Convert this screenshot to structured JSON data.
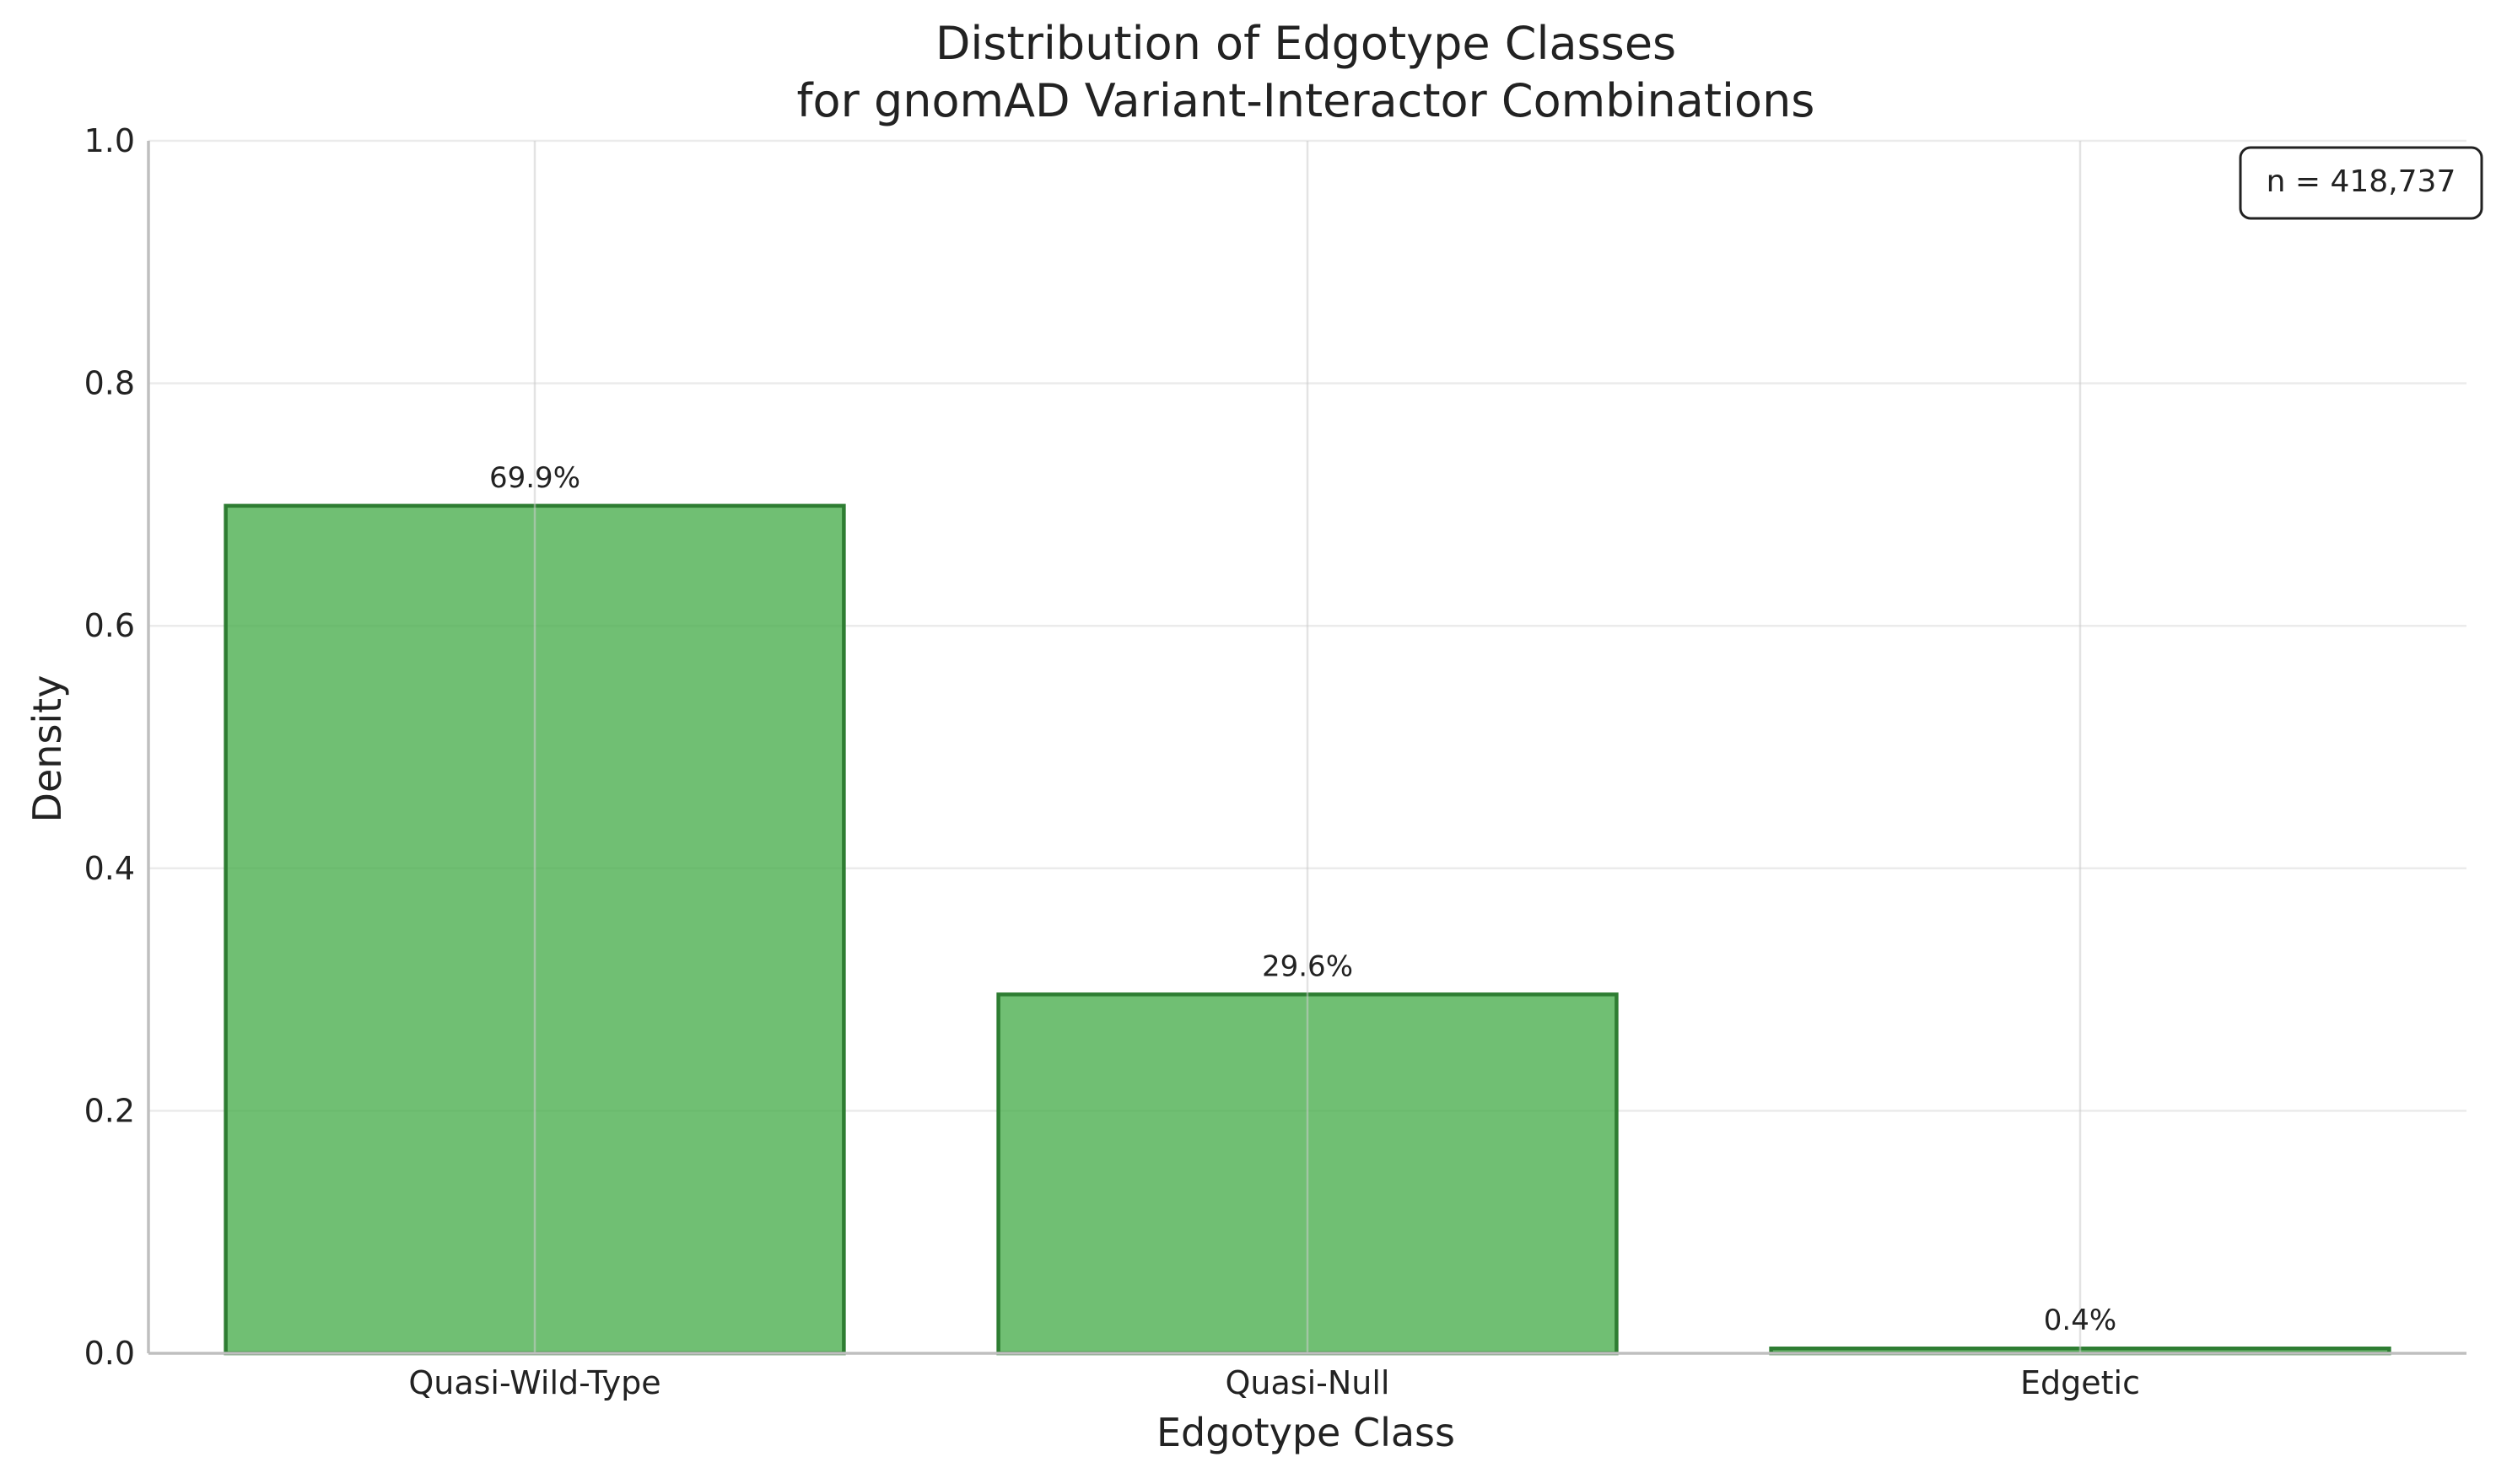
{
  "chart_data": {
    "type": "bar",
    "title": [
      "Distribution of Edgotype Classes",
      "for gnomAD Variant-Interactor Combinations"
    ],
    "xlabel": "Edgotype Class",
    "ylabel": "Density",
    "categories": [
      "Quasi-Wild-Type",
      "Quasi-Null",
      "Edgetic"
    ],
    "values": [
      0.699,
      0.296,
      0.004
    ],
    "data_labels": [
      "69.9%",
      "29.6%",
      "0.4%"
    ],
    "ylim": [
      0,
      1.0
    ],
    "yticks": [
      0.0,
      0.2,
      0.4,
      0.6,
      0.8,
      1.0
    ],
    "ytick_labels": [
      "0.0",
      "0.2",
      "0.4",
      "0.6",
      "0.8",
      "1.0"
    ],
    "annotation": "n = 418,737",
    "annotation_position": "top-right",
    "grid": true,
    "colors": {
      "bar_fill": "#4CAF50",
      "bar_edge": "#2E7D32",
      "grid": "#ebebeb",
      "vgrid": "#cccccc",
      "axis": "#bfbfbf",
      "text": "#222222"
    }
  }
}
